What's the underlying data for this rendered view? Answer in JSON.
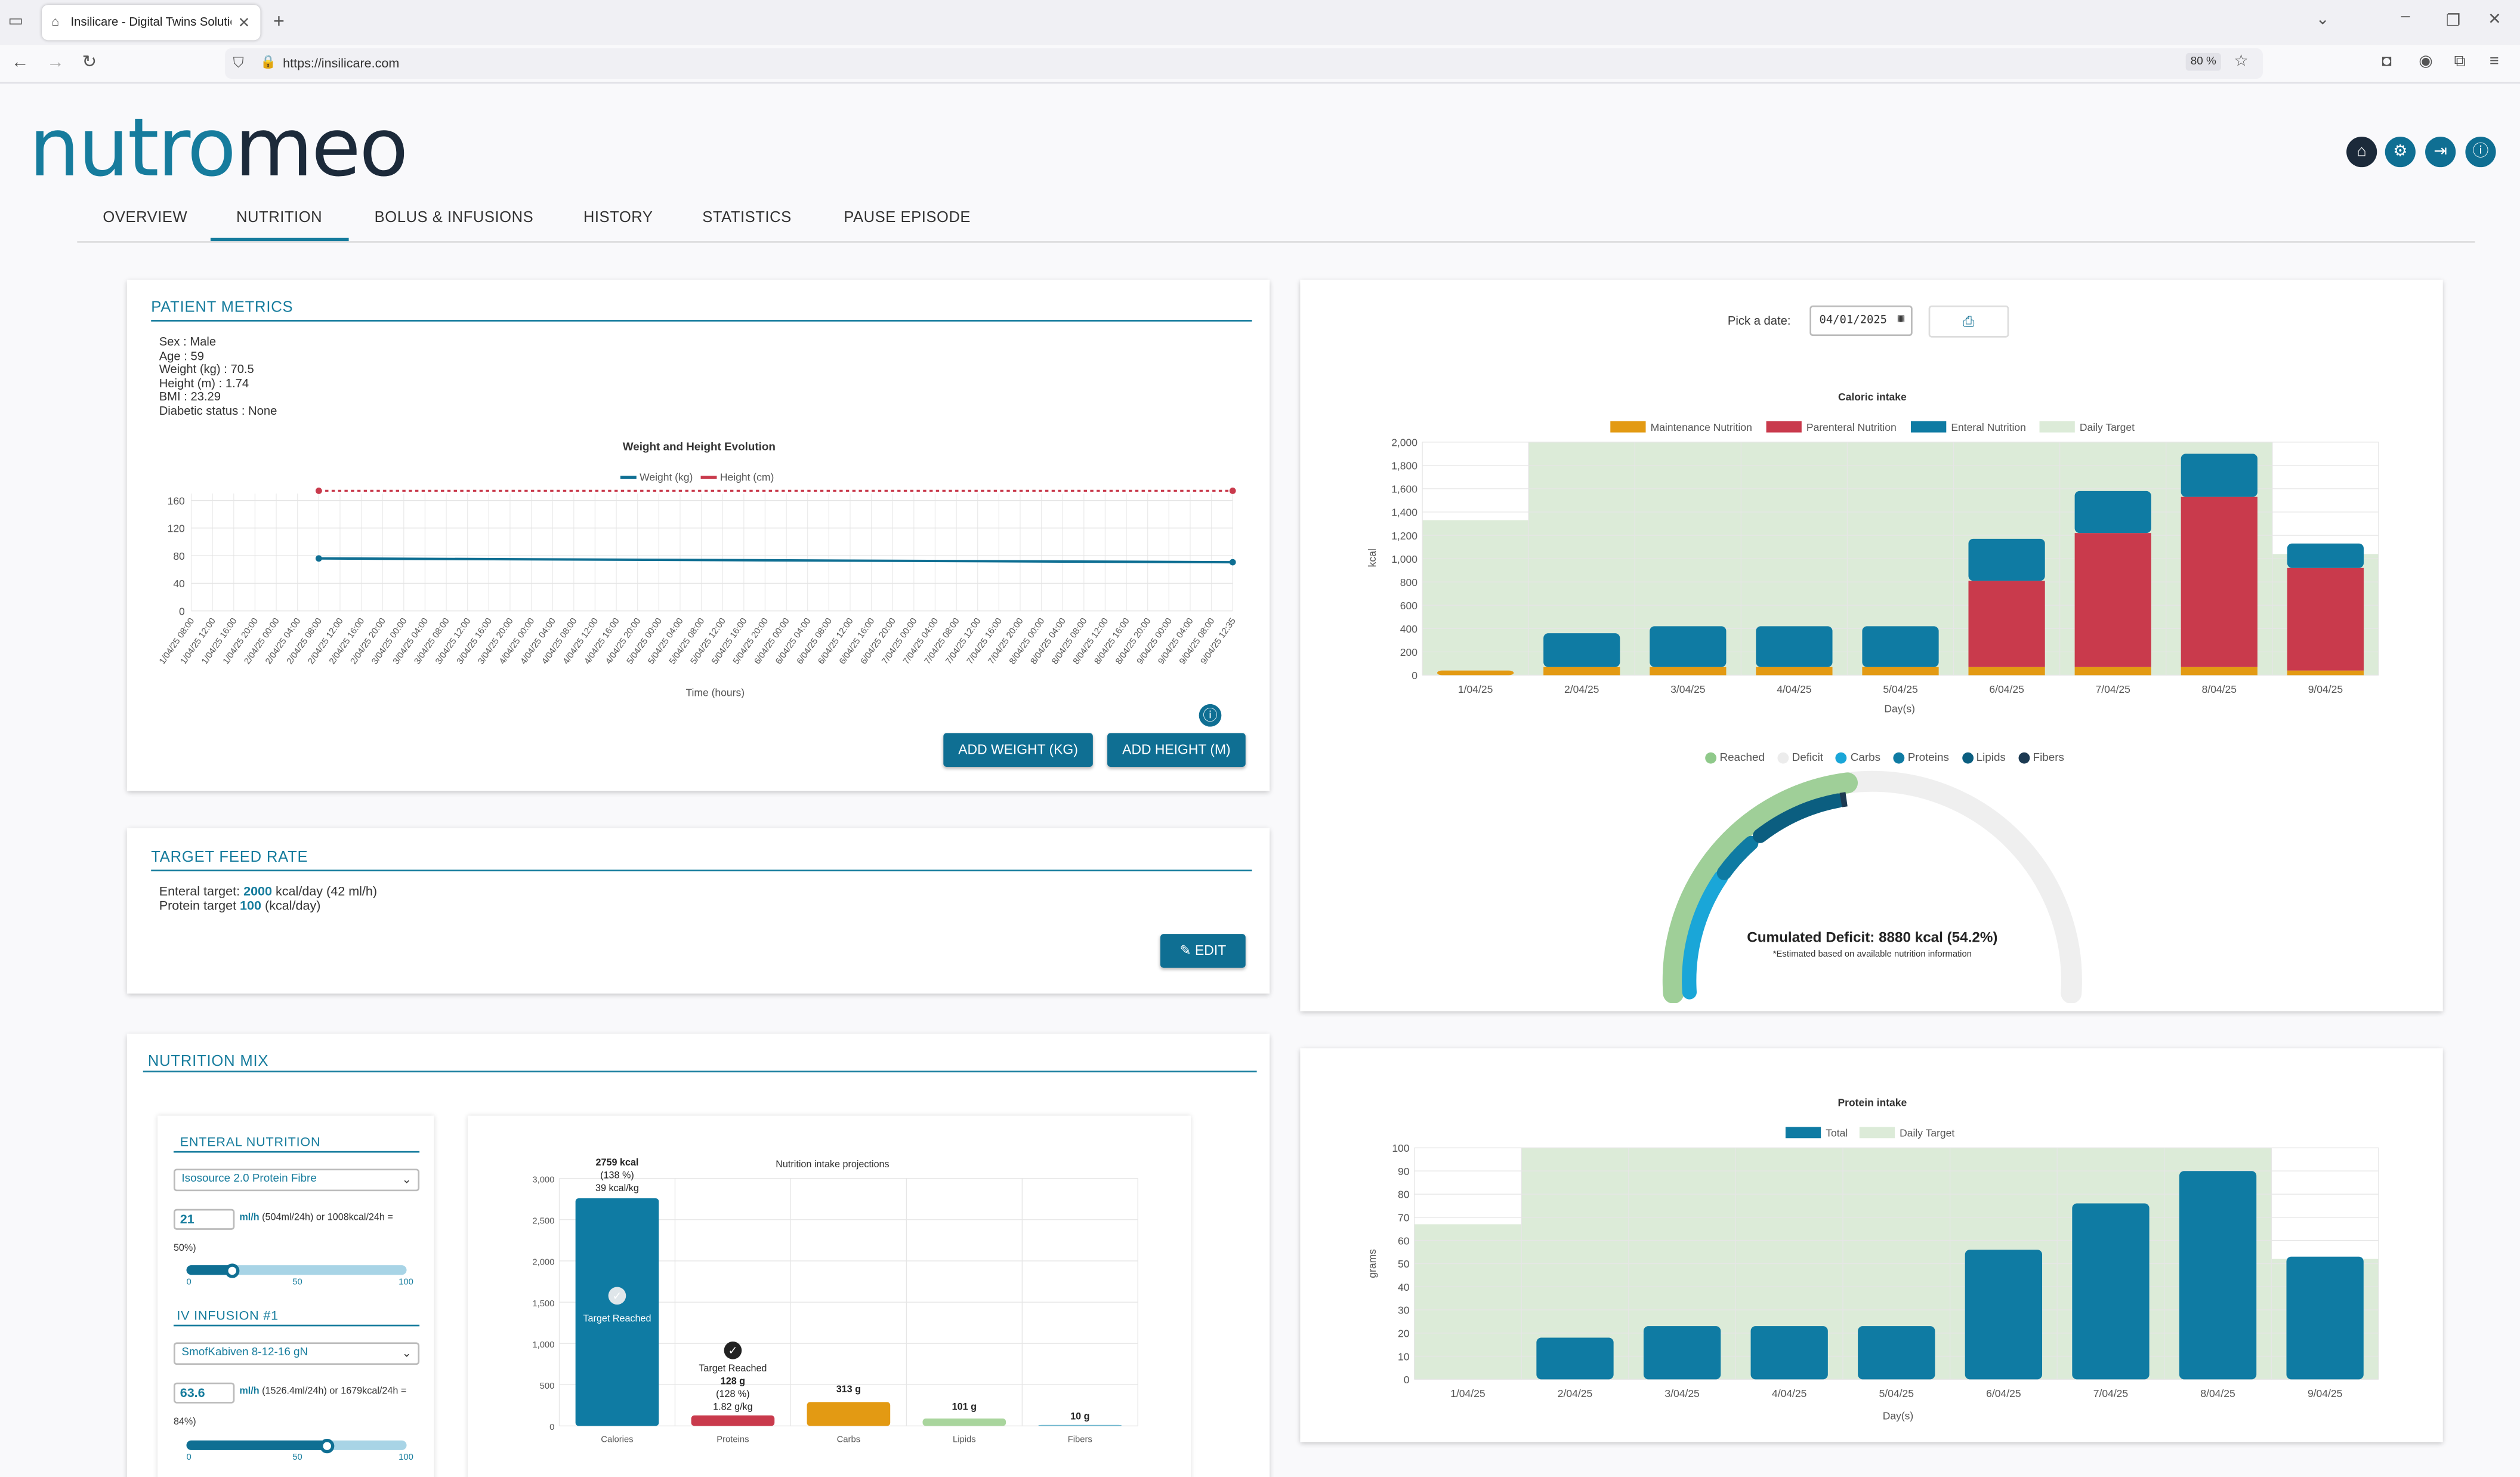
{
  "browser": {
    "tab_title": "Insilicare - Digital Twins Solutio",
    "url": "https://insilicare.com",
    "zoom": "80 %"
  },
  "app": {
    "logo_part1": "nutro",
    "logo_part2": "meo",
    "nav_tabs": [
      "OVERVIEW",
      "NUTRITION",
      "BOLUS & INFUSIONS",
      "HISTORY",
      "STATISTICS",
      "PAUSE EPISODE"
    ],
    "active_tab": "NUTRITION"
  },
  "patient_metrics": {
    "title": "PATIENT METRICS",
    "lines": [
      "Sex : Male",
      "Age : 59",
      "Weight (kg) : 70.5",
      "Height (m) : 1.74",
      "BMI : 23.29",
      "Diabetic status : None"
    ],
    "chart_title": "Weight and Height Evolution",
    "legend_weight": "Weight (kg)",
    "legend_height": "Height (cm)",
    "x_label": "Time (hours)",
    "add_weight": "ADD WEIGHT (KG)",
    "add_height": "ADD HEIGHT (M)"
  },
  "target_feed": {
    "title": "TARGET FEED RATE",
    "enteral_prefix": "Enteral target: ",
    "enteral_value": "2000",
    "enteral_suffix": " kcal/day (42 ml/h)",
    "protein_prefix": "Protein target ",
    "protein_value": "100",
    "protein_suffix": " (kcal/day)",
    "edit": "EDIT"
  },
  "nutrition_mix": {
    "title": "NUTRITION MIX",
    "enteral_title": "ENTERAL NUTRITION",
    "enteral_product": "Isosource 2.0 Protein Fibre",
    "enteral_rate": "21",
    "enteral_rate_text": "ml/h",
    "enteral_detail": "(504ml/24h) or 1008kcal/24h =",
    "enteral_pct": "50%)",
    "enteral_slider_fraction": 0.21,
    "iv_title": "IV INFUSION #1",
    "iv_product": "SmofKabiven 8-12-16 gN",
    "iv_rate": "63.6",
    "iv_rate_text": "ml/h",
    "iv_detail": "(1526.4ml/24h) or 1679kcal/24h =",
    "iv_pct": "84%)",
    "iv_slider_fraction": 0.636,
    "slider_ticks": [
      "0",
      "50",
      "100"
    ]
  },
  "projections": {
    "title": "Nutrition intake projections",
    "cal_label_1": "2759 kcal",
    "cal_label_2": "(138 %)",
    "cal_label_3": "39 kcal/kg",
    "cal_reached": "Target Reached",
    "prot_reached": "Target Reached",
    "prot_label_1": "128 g",
    "prot_label_2": "(128 %)",
    "prot_label_3": "1.82 g/kg",
    "carbs_label": "313 g",
    "lipids_label": "101 g",
    "fibers_label": "10 g"
  },
  "right_panel": {
    "pick_date_label": "Pick a date:",
    "date_value": "04/01/2025",
    "caloric_title": "Caloric intake",
    "cal_legend": [
      "Maintenance Nutrition",
      "Parenteral Nutrition",
      "Enteral Nutrition",
      "Daily Target"
    ],
    "cal_ylabel": "kcal",
    "cal_xlabel": "Day(s)",
    "gauge_legend": [
      "Reached",
      "Deficit",
      "Carbs",
      "Proteins",
      "Lipids",
      "Fibers"
    ],
    "deficit_text": "Cumulated Deficit: 8880 kcal (54.2%)",
    "deficit_note": "*Estimated based on available nutrition information",
    "protein_title": "Protein intake",
    "prot_legend": [
      "Total",
      "Daily Target"
    ],
    "prot_ylabel": "grams",
    "prot_xlabel": "Day(s)"
  },
  "colors": {
    "accent": "#167c9d",
    "enteral": "#0f7ba3",
    "parenteral": "#c93a4c",
    "maintenance": "#e39a13",
    "target": "#dcebd8",
    "height_line": "#c93a4c",
    "weight_line": "#0f6f93"
  },
  "chart_data": [
    {
      "type": "line",
      "title": "Weight and Height Evolution",
      "xlabel": "Time (hours)",
      "ylabel": "",
      "ylim": [
        0,
        170
      ],
      "yticks": [
        0,
        40,
        80,
        120,
        160
      ],
      "x": [
        "1/04/25 08:00",
        "1/04/25 12:00",
        "1/04/25 16:00",
        "1/04/25 20:00",
        "2/04/25 00:00",
        "2/04/25 04:00",
        "2/04/25 08:00",
        "2/04/25 12:00",
        "2/04/25 16:00",
        "2/04/25 20:00",
        "3/04/25 00:00",
        "3/04/25 04:00",
        "3/04/25 08:00",
        "3/04/25 12:00",
        "3/04/25 16:00",
        "3/04/25 20:00",
        "4/04/25 00:00",
        "4/04/25 04:00",
        "4/04/25 08:00",
        "4/04/25 12:00",
        "4/04/25 16:00",
        "4/04/25 20:00",
        "5/04/25 00:00",
        "5/04/25 04:00",
        "5/04/25 08:00",
        "5/04/25 12:00",
        "5/04/25 16:00",
        "5/04/25 20:00",
        "6/04/25 00:00",
        "6/04/25 04:00",
        "6/04/25 08:00",
        "6/04/25 12:00",
        "6/04/25 16:00",
        "6/04/25 20:00",
        "7/04/25 00:00",
        "7/04/25 04:00",
        "7/04/25 08:00",
        "7/04/25 12:00",
        "7/04/25 16:00",
        "7/04/25 20:00",
        "8/04/25 00:00",
        "8/04/25 04:00",
        "8/04/25 08:00",
        "8/04/25 12:00",
        "8/04/25 16:00",
        "8/04/25 20:00",
        "9/04/25 00:00",
        "9/04/25 04:00",
        "9/04/25 08:00",
        "9/04/25 12:35"
      ],
      "series": [
        {
          "name": "Weight (kg)",
          "start_index": 6,
          "values_start": 76,
          "values_end": 70.5
        },
        {
          "name": "Height (cm)",
          "start_index": 6,
          "values_start": 174,
          "values_end": 174
        }
      ]
    },
    {
      "type": "bar",
      "title": "Caloric intake",
      "xlabel": "Day(s)",
      "ylabel": "kcal",
      "ylim": [
        0,
        2000
      ],
      "yticks": [
        0,
        200,
        400,
        600,
        800,
        1000,
        1200,
        1400,
        1600,
        1800,
        2000
      ],
      "categories": [
        "1/04/25",
        "2/04/25",
        "3/04/25",
        "4/04/25",
        "5/04/25",
        "6/04/25",
        "7/04/25",
        "8/04/25",
        "9/04/25"
      ],
      "series": [
        {
          "name": "Maintenance Nutrition",
          "values": [
            40,
            70,
            70,
            70,
            70,
            70,
            70,
            70,
            40
          ]
        },
        {
          "name": "Parenteral Nutrition",
          "values": [
            0,
            0,
            0,
            0,
            0,
            740,
            1150,
            1460,
            880
          ]
        },
        {
          "name": "Enteral Nutrition",
          "values": [
            0,
            290,
            350,
            350,
            350,
            360,
            360,
            370,
            210
          ]
        },
        {
          "name": "Daily Target",
          "values": [
            1330,
            2000,
            2000,
            2000,
            2000,
            2000,
            2000,
            2000,
            1040
          ]
        }
      ]
    },
    {
      "type": "pie",
      "title": "Cumulated Deficit",
      "categories": [
        "Reached",
        "Deficit",
        "Carbs",
        "Proteins",
        "Lipids",
        "Fibers"
      ],
      "values": [
        45.8,
        54.2,
        18,
        10,
        16,
        1
      ]
    },
    {
      "type": "bar",
      "title": "Protein intake",
      "xlabel": "Day(s)",
      "ylabel": "grams",
      "ylim": [
        0,
        100
      ],
      "yticks": [
        0,
        10,
        20,
        30,
        40,
        50,
        60,
        70,
        80,
        90,
        100
      ],
      "categories": [
        "1/04/25",
        "2/04/25",
        "3/04/25",
        "4/04/25",
        "5/04/25",
        "6/04/25",
        "7/04/25",
        "8/04/25",
        "9/04/25"
      ],
      "series": [
        {
          "name": "Total",
          "values": [
            0,
            18,
            23,
            23,
            23,
            56,
            76,
            90,
            53
          ]
        },
        {
          "name": "Daily Target",
          "values": [
            67,
            100,
            100,
            100,
            100,
            100,
            100,
            100,
            52
          ]
        }
      ]
    },
    {
      "type": "bar",
      "title": "Nutrition intake projections",
      "ylim": [
        0,
        3000
      ],
      "yticks": [
        0,
        500,
        1000,
        1500,
        2000,
        2500,
        3000
      ],
      "categories": [
        "Calories",
        "Proteins",
        "Carbs",
        "Lipids",
        "Fibers"
      ],
      "values": [
        2759,
        128,
        313,
        101,
        10
      ]
    }
  ]
}
